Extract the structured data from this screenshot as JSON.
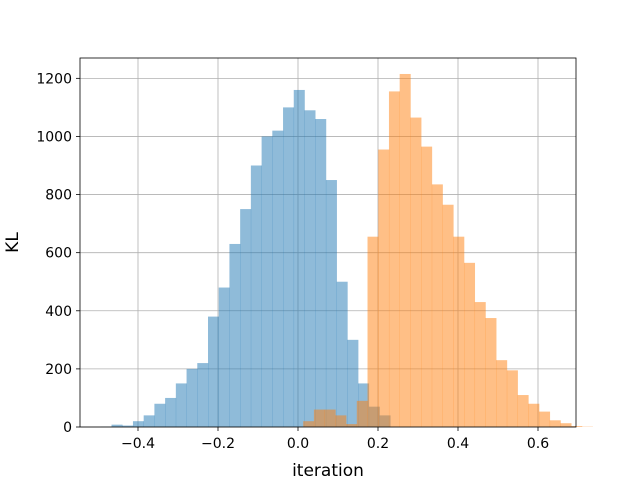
{
  "chart_data": {
    "type": "histogram",
    "xlabel": "iteration",
    "ylabel": "KL",
    "xlim": [
      -0.545,
      0.695
    ],
    "ylim": [
      0,
      1270
    ],
    "xticks": [
      -0.4,
      -0.2,
      0.0,
      0.2,
      0.4,
      0.6
    ],
    "xtick_labels": [
      "−0.4",
      "−0.2",
      "0.0",
      "0.2",
      "0.4",
      "0.6"
    ],
    "yticks": [
      0,
      200,
      400,
      600,
      800,
      1000,
      1200
    ],
    "ytick_labels": [
      "0",
      "200",
      "400",
      "600",
      "800",
      "1000",
      "1200"
    ],
    "grid": true,
    "series": [
      {
        "color": "#1f77b4",
        "opacity": 0.5,
        "bin_start": -0.493,
        "bin_width": 0.0268,
        "counts": [
          1,
          8,
          5,
          20,
          40,
          80,
          100,
          150,
          200,
          220,
          380,
          480,
          630,
          750,
          900,
          1000,
          1020,
          1100,
          1160,
          1090,
          1060,
          850,
          500,
          300,
          150,
          70,
          40
        ]
      },
      {
        "color": "#ff7f0e",
        "opacity": 0.5,
        "bin_start": 0.013,
        "bin_width": 0.0268,
        "counts": [
          20,
          60,
          60,
          40,
          10,
          90,
          655,
          955,
          1155,
          1215,
          1065,
          965,
          835,
          765,
          655,
          565,
          430,
          375,
          230,
          195,
          110,
          80,
          53,
          23,
          13,
          3,
          1
        ]
      }
    ]
  }
}
